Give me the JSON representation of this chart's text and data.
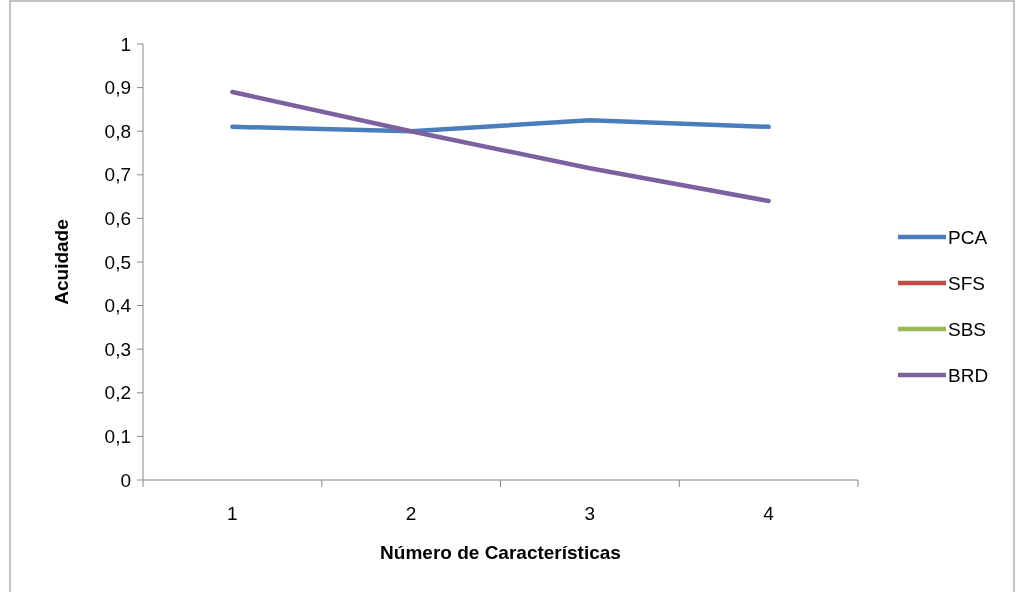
{
  "chart_data": {
    "type": "line",
    "xlabel": "Número de Características",
    "ylabel": "Acuidade",
    "categories": [
      "1",
      "2",
      "3",
      "4"
    ],
    "series": [
      {
        "name": "PCA",
        "color": "#4a7ebb",
        "values": [
          0.81,
          0.8,
          0.825,
          0.81
        ]
      },
      {
        "name": "SFS",
        "color": "#be4b48",
        "values": [
          null,
          null,
          null,
          null
        ]
      },
      {
        "name": "SBS",
        "color": "#98b954",
        "values": [
          null,
          null,
          null,
          null
        ]
      },
      {
        "name": "BRD",
        "color": "#7d60a0",
        "values": [
          0.89,
          0.8,
          0.715,
          0.64
        ]
      }
    ],
    "ylim": [
      0,
      1
    ],
    "yticks": [
      0,
      {
        "value": 0.1,
        "label": "0,1"
      },
      {
        "value": 0.2,
        "label": "0,2"
      },
      {
        "value": 0.3,
        "label": "0,3"
      },
      {
        "value": 0.4,
        "label": "0,4"
      },
      {
        "value": 0.5,
        "label": "0,5"
      },
      {
        "value": 0.6,
        "label": "0,6"
      },
      {
        "value": 0.7,
        "label": "0,7"
      },
      {
        "value": 0.8,
        "label": "0,8"
      },
      {
        "value": 0.9,
        "label": "0,9"
      },
      1
    ],
    "grid": false,
    "legend": "right",
    "marker": "none",
    "line_style": "solid"
  }
}
